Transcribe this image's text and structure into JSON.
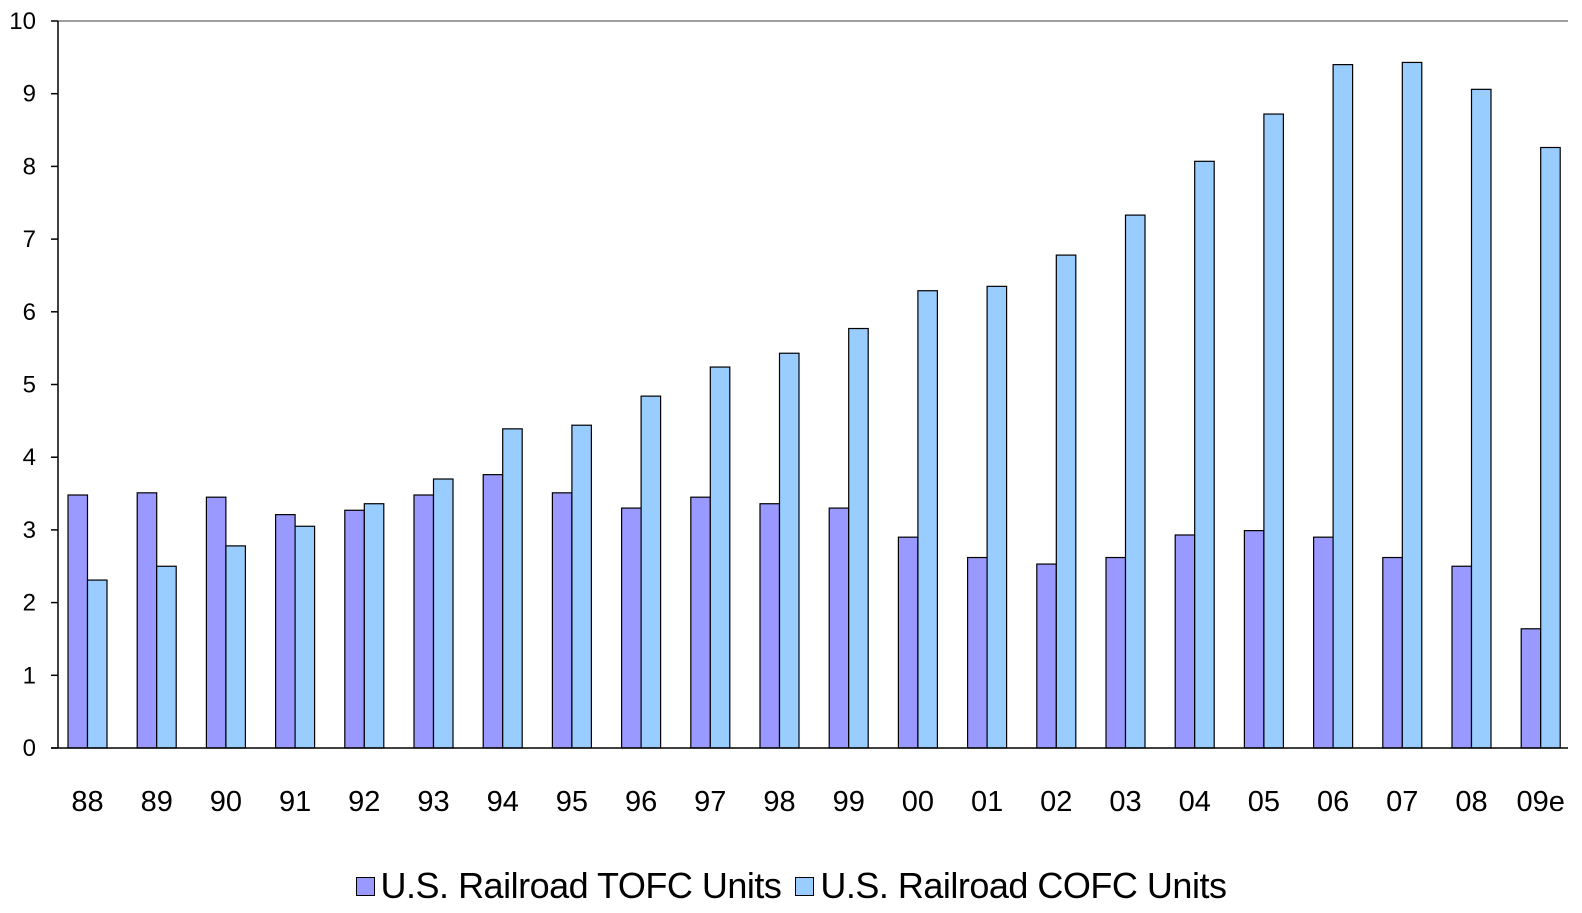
{
  "chart_data": {
    "type": "bar",
    "title": "",
    "xlabel": "",
    "ylabel": "",
    "ylim": [
      0,
      10
    ],
    "yticks": [
      0,
      1,
      2,
      3,
      4,
      5,
      6,
      7,
      8,
      9,
      10
    ],
    "grid": false,
    "legend_position": "bottom",
    "categories": [
      "88",
      "89",
      "90",
      "91",
      "92",
      "93",
      "94",
      "95",
      "96",
      "97",
      "98",
      "99",
      "00",
      "01",
      "02",
      "03",
      "04",
      "05",
      "06",
      "07",
      "08",
      "09e"
    ],
    "series": [
      {
        "name": "U.S. Railroad TOFC Units",
        "color": "#9999ff",
        "values": [
          3.48,
          3.51,
          3.45,
          3.21,
          3.27,
          3.48,
          3.76,
          3.51,
          3.3,
          3.45,
          3.36,
          3.3,
          2.9,
          2.62,
          2.53,
          2.62,
          2.93,
          2.99,
          2.9,
          2.62,
          2.5,
          1.64
        ]
      },
      {
        "name": "U.S. Railroad COFC Units",
        "color": "#99ccff",
        "values": [
          2.31,
          2.5,
          2.78,
          3.05,
          3.36,
          3.7,
          4.39,
          4.44,
          4.84,
          5.24,
          5.43,
          5.77,
          6.29,
          6.35,
          6.78,
          7.33,
          8.07,
          8.72,
          9.4,
          9.43,
          9.06,
          8.26
        ]
      }
    ]
  }
}
